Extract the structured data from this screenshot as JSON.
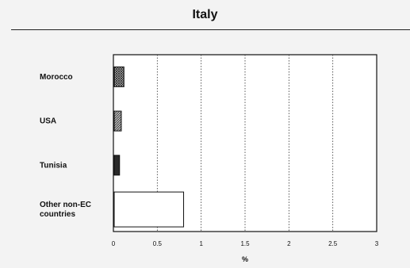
{
  "chart_data": {
    "type": "bar",
    "orientation": "horizontal",
    "title": "Italy",
    "xlabel": "%",
    "ylabel": "",
    "xlim": [
      0,
      3
    ],
    "xticks": [
      "0",
      "0.5",
      "1",
      "1.5",
      "2",
      "2.5",
      "3"
    ],
    "categories": [
      "Morocco",
      "USA",
      "Tunisia",
      "Other non-EC countries"
    ],
    "category_lines": [
      [
        "Morocco"
      ],
      [
        "USA"
      ],
      [
        "Tunisia"
      ],
      [
        "Other non-EC",
        "countries"
      ]
    ],
    "values": [
      0.12,
      0.09,
      0.07,
      0.8
    ],
    "bar_styles": [
      "crosshatch",
      "diagonal",
      "dark",
      "white"
    ],
    "grid": "vertical dotted"
  },
  "colors": {
    "background": "#f3f3f3",
    "plot_background": "#ffffff",
    "axis": "#111111",
    "grid": "#333333"
  }
}
